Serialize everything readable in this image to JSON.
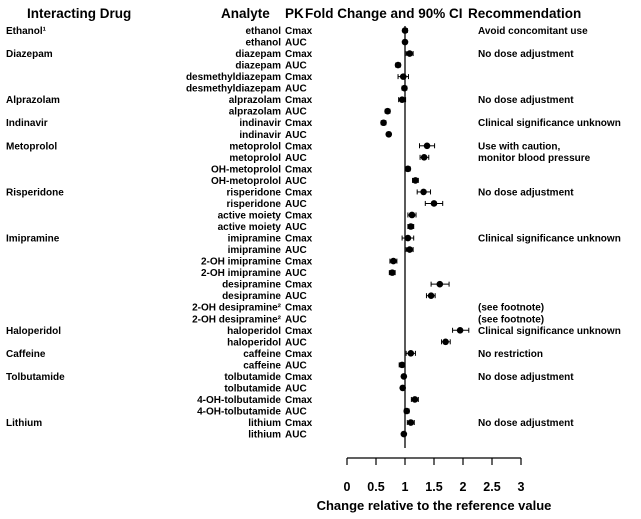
{
  "chart_data": {
    "type": "scatter",
    "subtype": "forest-plot",
    "columns": {
      "drug": "Interacting Drug",
      "analyte": "Analyte",
      "pk": "PK",
      "estimate": "Fold Change and 90% CI",
      "recommendation": "Recommendation"
    },
    "xlabel": "Change relative to the reference value",
    "xlim": [
      0,
      3
    ],
    "xticks": [
      "0",
      "0.5",
      "1",
      "1.5",
      "2",
      "2.5",
      "3"
    ],
    "reference_line": 1,
    "rows": [
      {
        "drug": "Ethanol¹",
        "analyte": "ethanol",
        "pk": "Cmax",
        "est": 1.0,
        "lo": 0.97,
        "hi": 1.04,
        "rec": "Avoid concomitant use"
      },
      {
        "drug": "",
        "analyte": "ethanol",
        "pk": "AUC",
        "est": 1.0,
        "lo": 0.97,
        "hi": 1.03,
        "rec": ""
      },
      {
        "drug": "Diazepam",
        "analyte": "diazepam",
        "pk": "Cmax",
        "est": 1.08,
        "lo": 1.02,
        "hi": 1.14,
        "rec": "No dose adjustment"
      },
      {
        "drug": "",
        "analyte": "diazepam",
        "pk": "AUC",
        "est": 0.88,
        "lo": 0.84,
        "hi": 0.92,
        "rec": ""
      },
      {
        "drug": "",
        "analyte": "desmethyldiazepam",
        "pk": "Cmax",
        "est": 0.97,
        "lo": 0.88,
        "hi": 1.06,
        "rec": ""
      },
      {
        "drug": "",
        "analyte": "desmethyldiazepam",
        "pk": "AUC",
        "est": 0.99,
        "lo": 0.95,
        "hi": 1.03,
        "rec": ""
      },
      {
        "drug": "Alprazolam",
        "analyte": "alprazolam",
        "pk": "Cmax",
        "est": 0.95,
        "lo": 0.89,
        "hi": 1.01,
        "rec": "No dose adjustment"
      },
      {
        "drug": "",
        "analyte": "alprazolam",
        "pk": "AUC",
        "est": 0.7,
        "lo": 0.66,
        "hi": 0.74,
        "rec": ""
      },
      {
        "drug": "Indinavir",
        "analyte": "indinavir",
        "pk": "Cmax",
        "est": 0.63,
        "lo": 0.59,
        "hi": 0.67,
        "rec": "Clinical significance unknown"
      },
      {
        "drug": "",
        "analyte": "indinavir",
        "pk": "AUC",
        "est": 0.72,
        "lo": 0.69,
        "hi": 0.75,
        "rec": ""
      },
      {
        "drug": "Metoprolol",
        "analyte": "metoprolol",
        "pk": "Cmax",
        "est": 1.38,
        "lo": 1.25,
        "hi": 1.51,
        "rec": "Use with caution,"
      },
      {
        "drug": "",
        "analyte": "metoprolol",
        "pk": "AUC",
        "est": 1.33,
        "lo": 1.26,
        "hi": 1.41,
        "rec": "monitor blood pressure"
      },
      {
        "drug": "",
        "analyte": "OH-metoprolol",
        "pk": "Cmax",
        "est": 1.05,
        "lo": 1.01,
        "hi": 1.09,
        "rec": ""
      },
      {
        "drug": "",
        "analyte": "OH-metoprolol",
        "pk": "AUC",
        "est": 1.18,
        "lo": 1.13,
        "hi": 1.23,
        "rec": ""
      },
      {
        "drug": "Risperidone",
        "analyte": "risperidone",
        "pk": "Cmax",
        "est": 1.32,
        "lo": 1.21,
        "hi": 1.44,
        "rec": "No dose adjustment"
      },
      {
        "drug": "",
        "analyte": "risperidone",
        "pk": "AUC",
        "est": 1.5,
        "lo": 1.35,
        "hi": 1.65,
        "rec": ""
      },
      {
        "drug": "",
        "analyte": "active moiety",
        "pk": "Cmax",
        "est": 1.12,
        "lo": 1.05,
        "hi": 1.19,
        "rec": ""
      },
      {
        "drug": "",
        "analyte": "active moiety",
        "pk": "AUC",
        "est": 1.1,
        "lo": 1.05,
        "hi": 1.15,
        "rec": ""
      },
      {
        "drug": "Imipramine",
        "analyte": "imipramine",
        "pk": "Cmax",
        "est": 1.05,
        "lo": 0.95,
        "hi": 1.15,
        "rec": "Clinical significance unknown"
      },
      {
        "drug": "",
        "analyte": "imipramine",
        "pk": "AUC",
        "est": 1.08,
        "lo": 1.02,
        "hi": 1.14,
        "rec": ""
      },
      {
        "drug": "",
        "analyte": "2-OH imipramine",
        "pk": "Cmax",
        "est": 0.8,
        "lo": 0.74,
        "hi": 0.86,
        "rec": ""
      },
      {
        "drug": "",
        "analyte": "2-OH imipramine",
        "pk": "AUC",
        "est": 0.78,
        "lo": 0.73,
        "hi": 0.83,
        "rec": ""
      },
      {
        "drug": "",
        "analyte": "desipramine",
        "pk": "Cmax",
        "est": 1.6,
        "lo": 1.45,
        "hi": 1.76,
        "rec": ""
      },
      {
        "drug": "",
        "analyte": "desipramine",
        "pk": "AUC",
        "est": 1.45,
        "lo": 1.37,
        "hi": 1.52,
        "rec": ""
      },
      {
        "drug": "",
        "analyte": "2-OH desipramine²",
        "pk": "Cmax",
        "est": null,
        "lo": null,
        "hi": null,
        "rec": "(see footnote)"
      },
      {
        "drug": "",
        "analyte": "2-OH desipramine²",
        "pk": "AUC",
        "est": null,
        "lo": null,
        "hi": null,
        "rec": "(see footnote)"
      },
      {
        "drug": "Haloperidol",
        "analyte": "haloperidol",
        "pk": "Cmax",
        "est": 1.95,
        "lo": 1.82,
        "hi": 2.1,
        "rec": "Clinical significance unknown"
      },
      {
        "drug": "",
        "analyte": "haloperidol",
        "pk": "AUC",
        "est": 1.7,
        "lo": 1.63,
        "hi": 1.78,
        "rec": ""
      },
      {
        "drug": "Caffeine",
        "analyte": "caffeine",
        "pk": "Cmax",
        "est": 1.1,
        "lo": 1.02,
        "hi": 1.18,
        "rec": "No restriction"
      },
      {
        "drug": "",
        "analyte": "caffeine",
        "pk": "AUC",
        "est": 0.95,
        "lo": 0.9,
        "hi": 1.0,
        "rec": ""
      },
      {
        "drug": "Tolbutamide",
        "analyte": "tolbutamide",
        "pk": "Cmax",
        "est": 0.98,
        "lo": 0.95,
        "hi": 1.01,
        "rec": "No dose adjustment"
      },
      {
        "drug": "",
        "analyte": "tolbutamide",
        "pk": "AUC",
        "est": 0.96,
        "lo": 0.93,
        "hi": 0.99,
        "rec": ""
      },
      {
        "drug": "",
        "analyte": "4-OH-tolbutamide",
        "pk": "Cmax",
        "est": 1.17,
        "lo": 1.11,
        "hi": 1.23,
        "rec": ""
      },
      {
        "drug": "",
        "analyte": "4-OH-tolbutamide",
        "pk": "AUC",
        "est": 1.03,
        "lo": 0.99,
        "hi": 1.07,
        "rec": ""
      },
      {
        "drug": "Lithium",
        "analyte": "lithium",
        "pk": "Cmax",
        "est": 1.1,
        "lo": 1.04,
        "hi": 1.16,
        "rec": "No dose adjustment"
      },
      {
        "drug": "",
        "analyte": "lithium",
        "pk": "AUC",
        "est": 0.98,
        "lo": 0.95,
        "hi": 1.01,
        "rec": ""
      }
    ]
  }
}
